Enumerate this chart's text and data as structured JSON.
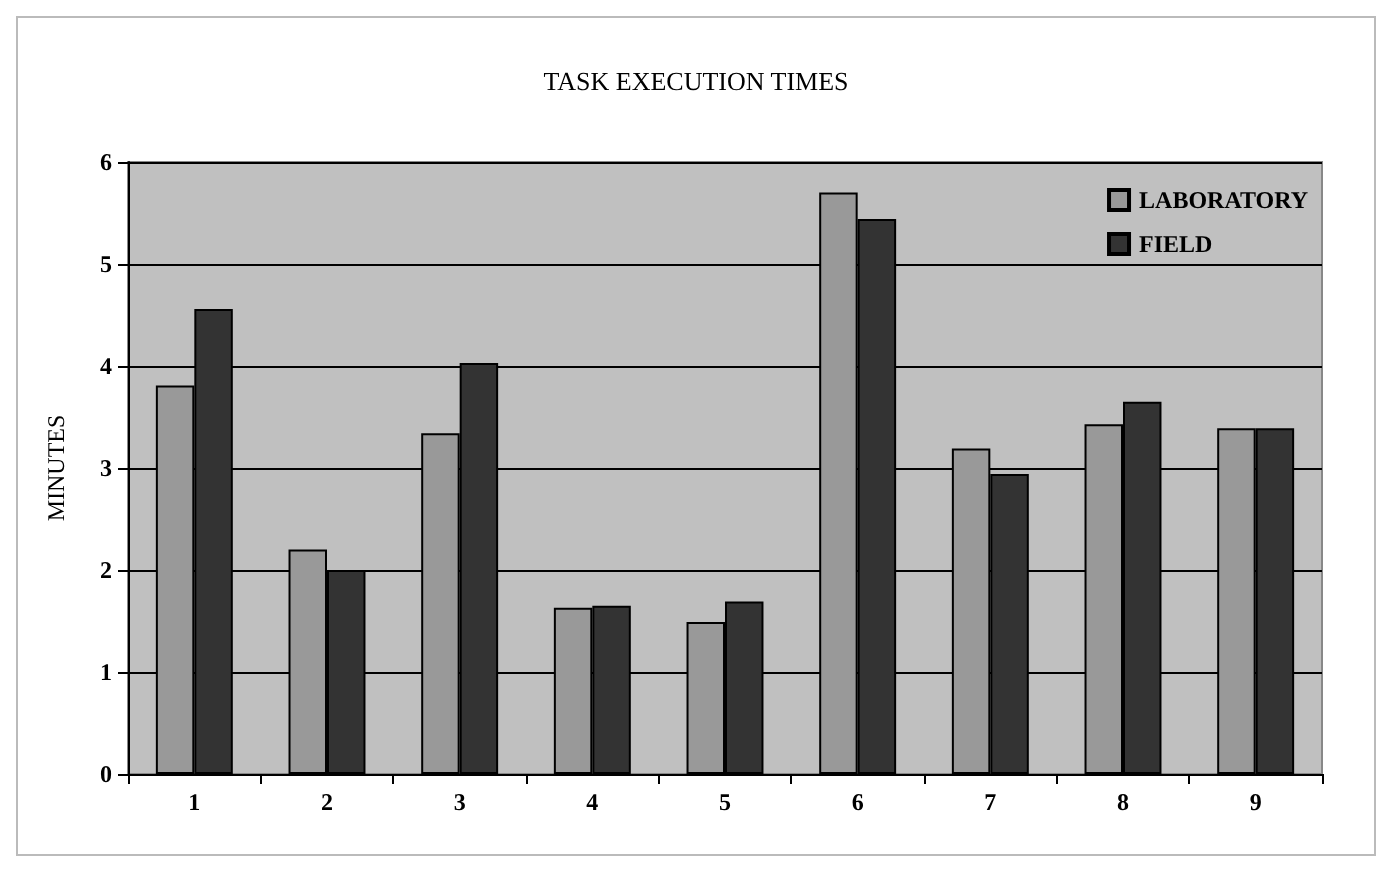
{
  "chart_data": {
    "type": "bar",
    "title": "TASK EXECUTION TIMES",
    "ylabel": "MINUTES",
    "categories": [
      "1",
      "2",
      "3",
      "4",
      "5",
      "6",
      "7",
      "8",
      "9"
    ],
    "series": [
      {
        "name": "LABORATORY",
        "color": "#999999",
        "values": [
          3.81,
          2.2,
          3.34,
          1.63,
          1.49,
          5.7,
          3.19,
          3.43,
          3.39
        ]
      },
      {
        "name": "FIELD",
        "color": "#333333",
        "values": [
          4.56,
          2.0,
          4.03,
          1.65,
          1.69,
          5.44,
          2.94,
          3.65,
          3.39
        ]
      }
    ],
    "ylim": [
      0,
      6
    ],
    "yticks": [
      0,
      1,
      2,
      3,
      4,
      5,
      6
    ],
    "grid": "y",
    "legend": "top right"
  }
}
